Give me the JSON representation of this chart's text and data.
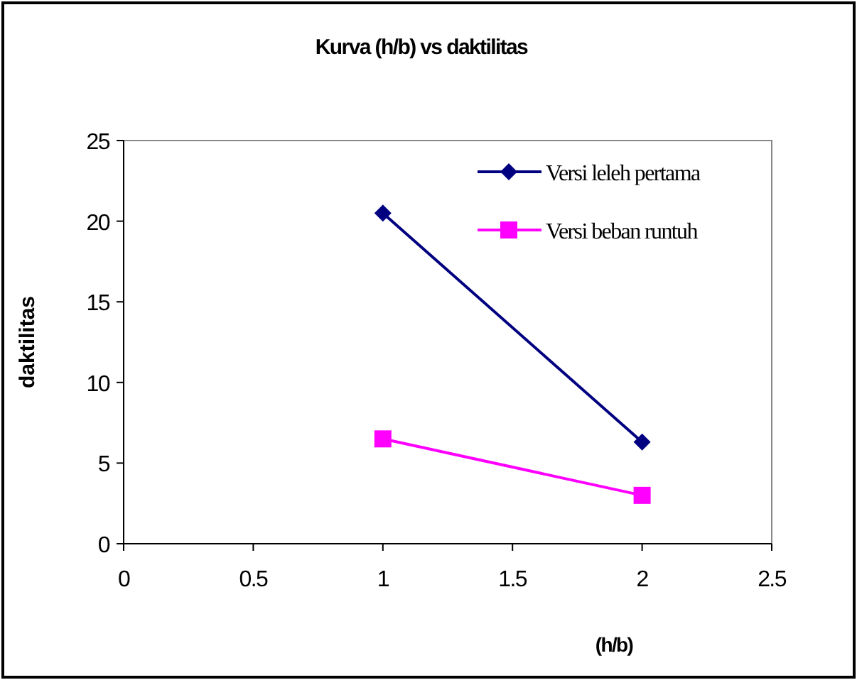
{
  "chart_data": {
    "type": "line",
    "title": "Kurva (h/b) vs daktilitas",
    "xlabel": "(h/b)",
    "ylabel": "daktilitas",
    "x": [
      1,
      2
    ],
    "series": [
      {
        "name": "Versi leleh pertama",
        "color": "#000080",
        "values": [
          20.5,
          6.3
        ],
        "marker": "diamond"
      },
      {
        "name": "Versi beban runtuh",
        "color": "#ff00ff",
        "values": [
          6.5,
          3.0
        ],
        "marker": "square"
      }
    ],
    "xlim": [
      0,
      2.5
    ],
    "xticks": [
      0,
      0.5,
      1,
      1.5,
      2,
      2.5
    ],
    "ylim": [
      0,
      25
    ],
    "yticks": [
      0,
      5,
      10,
      15,
      20,
      25
    ],
    "grid": false,
    "legend": "top right"
  }
}
